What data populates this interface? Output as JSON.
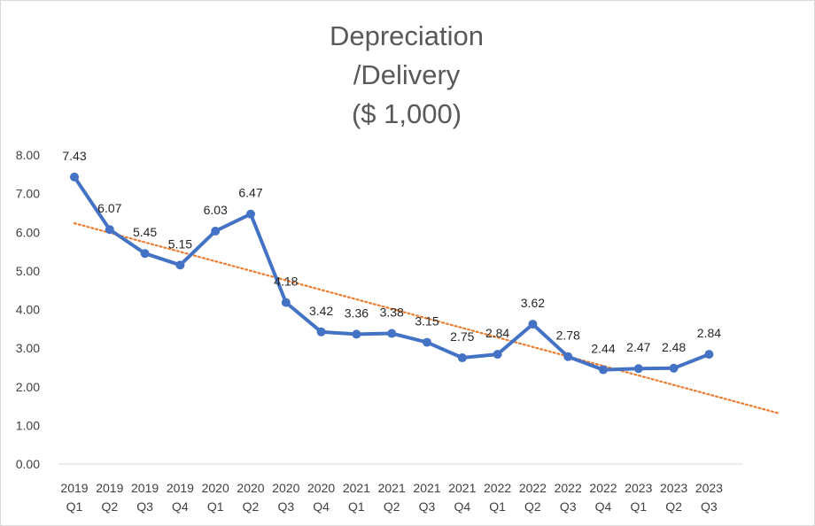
{
  "chart_data": {
    "type": "line",
    "title_lines": [
      "Depreciation",
      "/Delivery",
      "($ 1,000)"
    ],
    "categories": [
      [
        "2019",
        "Q1"
      ],
      [
        "2019",
        "Q2"
      ],
      [
        "2019",
        "Q3"
      ],
      [
        "2019",
        "Q4"
      ],
      [
        "2020",
        "Q1"
      ],
      [
        "2020",
        "Q2"
      ],
      [
        "2020",
        "Q3"
      ],
      [
        "2020",
        "Q4"
      ],
      [
        "2021",
        "Q1"
      ],
      [
        "2021",
        "Q2"
      ],
      [
        "2021",
        "Q3"
      ],
      [
        "2021",
        "Q4"
      ],
      [
        "2022",
        "Q1"
      ],
      [
        "2022",
        "Q2"
      ],
      [
        "2022",
        "Q3"
      ],
      [
        "2022",
        "Q4"
      ],
      [
        "2023",
        "Q1"
      ],
      [
        "2023",
        "Q2"
      ],
      [
        "2023",
        "Q3"
      ]
    ],
    "series": [
      {
        "values": [
          7.43,
          6.07,
          5.45,
          5.15,
          6.03,
          6.47,
          4.18,
          3.42,
          3.36,
          3.38,
          3.15,
          2.75,
          2.84,
          3.62,
          2.78,
          2.44,
          2.47,
          2.48,
          2.84
        ],
        "data_labels": [
          "7.43",
          "6.07",
          "5.45",
          "5.15",
          "6.03",
          "6.47",
          "4.18",
          "3.42",
          "3.36",
          "3.38",
          "3.15",
          "2.75",
          "2.84",
          "3.62",
          "2.78",
          "2.44",
          "2.47",
          "2.48",
          "2.84"
        ],
        "color": "#4472C4",
        "markers": true
      }
    ],
    "trendline": {
      "type": "linear",
      "style": "dotted",
      "color": "#ED7D31",
      "forward_periods": 2
    },
    "y_ticks": [
      "0.00",
      "1.00",
      "2.00",
      "3.00",
      "4.00",
      "5.00",
      "6.00",
      "7.00",
      "8.00"
    ],
    "ylim": [
      0,
      8
    ],
    "grid": false,
    "legend": "none"
  }
}
